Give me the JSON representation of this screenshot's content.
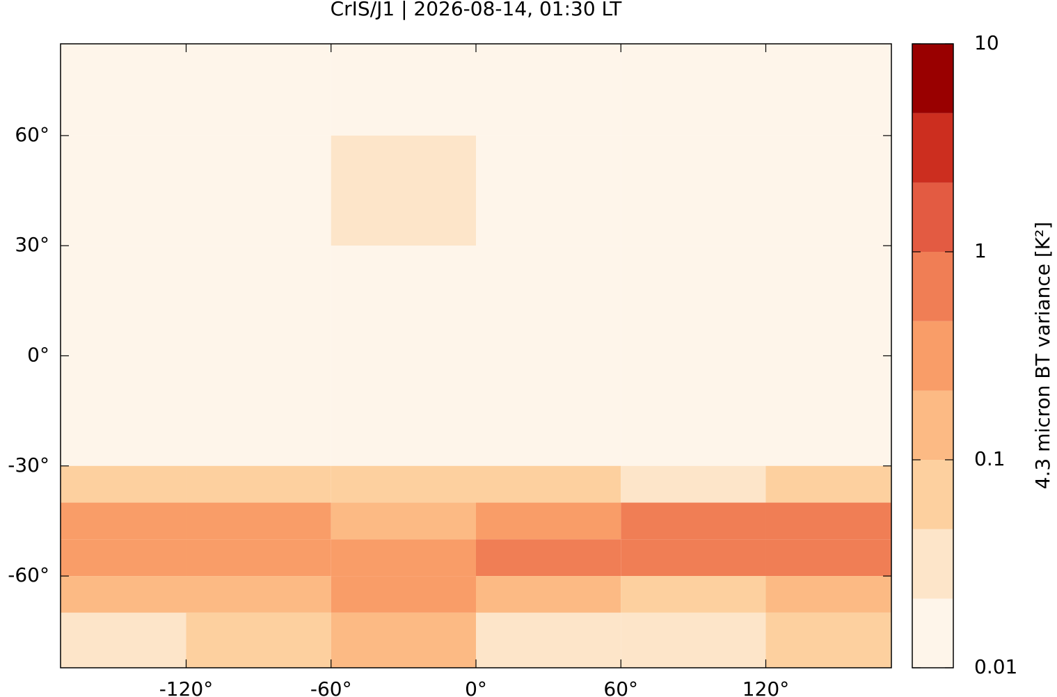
{
  "chart_data": {
    "type": "map-heatmap",
    "title": "CrIS/J1 | 2026-08-14, 01:30 LT",
    "xlim": [
      -172,
      172
    ],
    "ylim": [
      -85,
      85
    ],
    "xticks": [
      {
        "value": -120,
        "label": "-120°"
      },
      {
        "value": -60,
        "label": "-60°"
      },
      {
        "value": 0,
        "label": "0°"
      },
      {
        "value": 60,
        "label": "60°"
      },
      {
        "value": 120,
        "label": "120°"
      }
    ],
    "yticks": [
      {
        "value": -60,
        "label": "-60°"
      },
      {
        "value": -30,
        "label": "-30°"
      },
      {
        "value": 0,
        "label": "0°"
      },
      {
        "value": 30,
        "label": "30°"
      },
      {
        "value": 60,
        "label": "60°"
      }
    ],
    "lon_edges": [
      -172,
      -120,
      -60,
      0,
      60,
      120,
      172
    ],
    "lat_edges": [
      85,
      60,
      30,
      0,
      -30,
      -40,
      -50,
      -60,
      -70,
      -85
    ],
    "z": [
      [
        0.012,
        0.012,
        0.012,
        0.012,
        0.012,
        0.012
      ],
      [
        0.018,
        0.018,
        0.022,
        0.018,
        0.018,
        0.018
      ],
      [
        0.02,
        0.02,
        0.02,
        0.02,
        0.02,
        0.02
      ],
      [
        0.02,
        0.02,
        0.02,
        0.02,
        0.02,
        0.02
      ],
      [
        0.05,
        0.05,
        0.05,
        0.05,
        0.04,
        0.05
      ],
      [
        0.3,
        0.25,
        0.2,
        0.4,
        0.6,
        0.8
      ],
      [
        0.3,
        0.3,
        0.3,
        0.5,
        0.9,
        0.7
      ],
      [
        0.15,
        0.1,
        0.3,
        0.15,
        0.08,
        0.12
      ],
      [
        0.04,
        0.05,
        0.1,
        0.04,
        0.03,
        0.05
      ]
    ],
    "colorbar": {
      "label": "4.3 micron BT variance [K²]",
      "log": true,
      "lim": [
        0.01,
        10
      ],
      "ticks": [
        0.01,
        0.1,
        1,
        10
      ],
      "levels": [
        0.01,
        0.0215,
        0.0464,
        0.1,
        0.215,
        0.464,
        1,
        2.15,
        4.64,
        10
      ],
      "colors": [
        "#fef5ea",
        "#fde5c9",
        "#fdd09f",
        "#fcba84",
        "#f99d68",
        "#f07e55",
        "#e35b42",
        "#cc2e1f",
        "#990000"
      ]
    }
  }
}
